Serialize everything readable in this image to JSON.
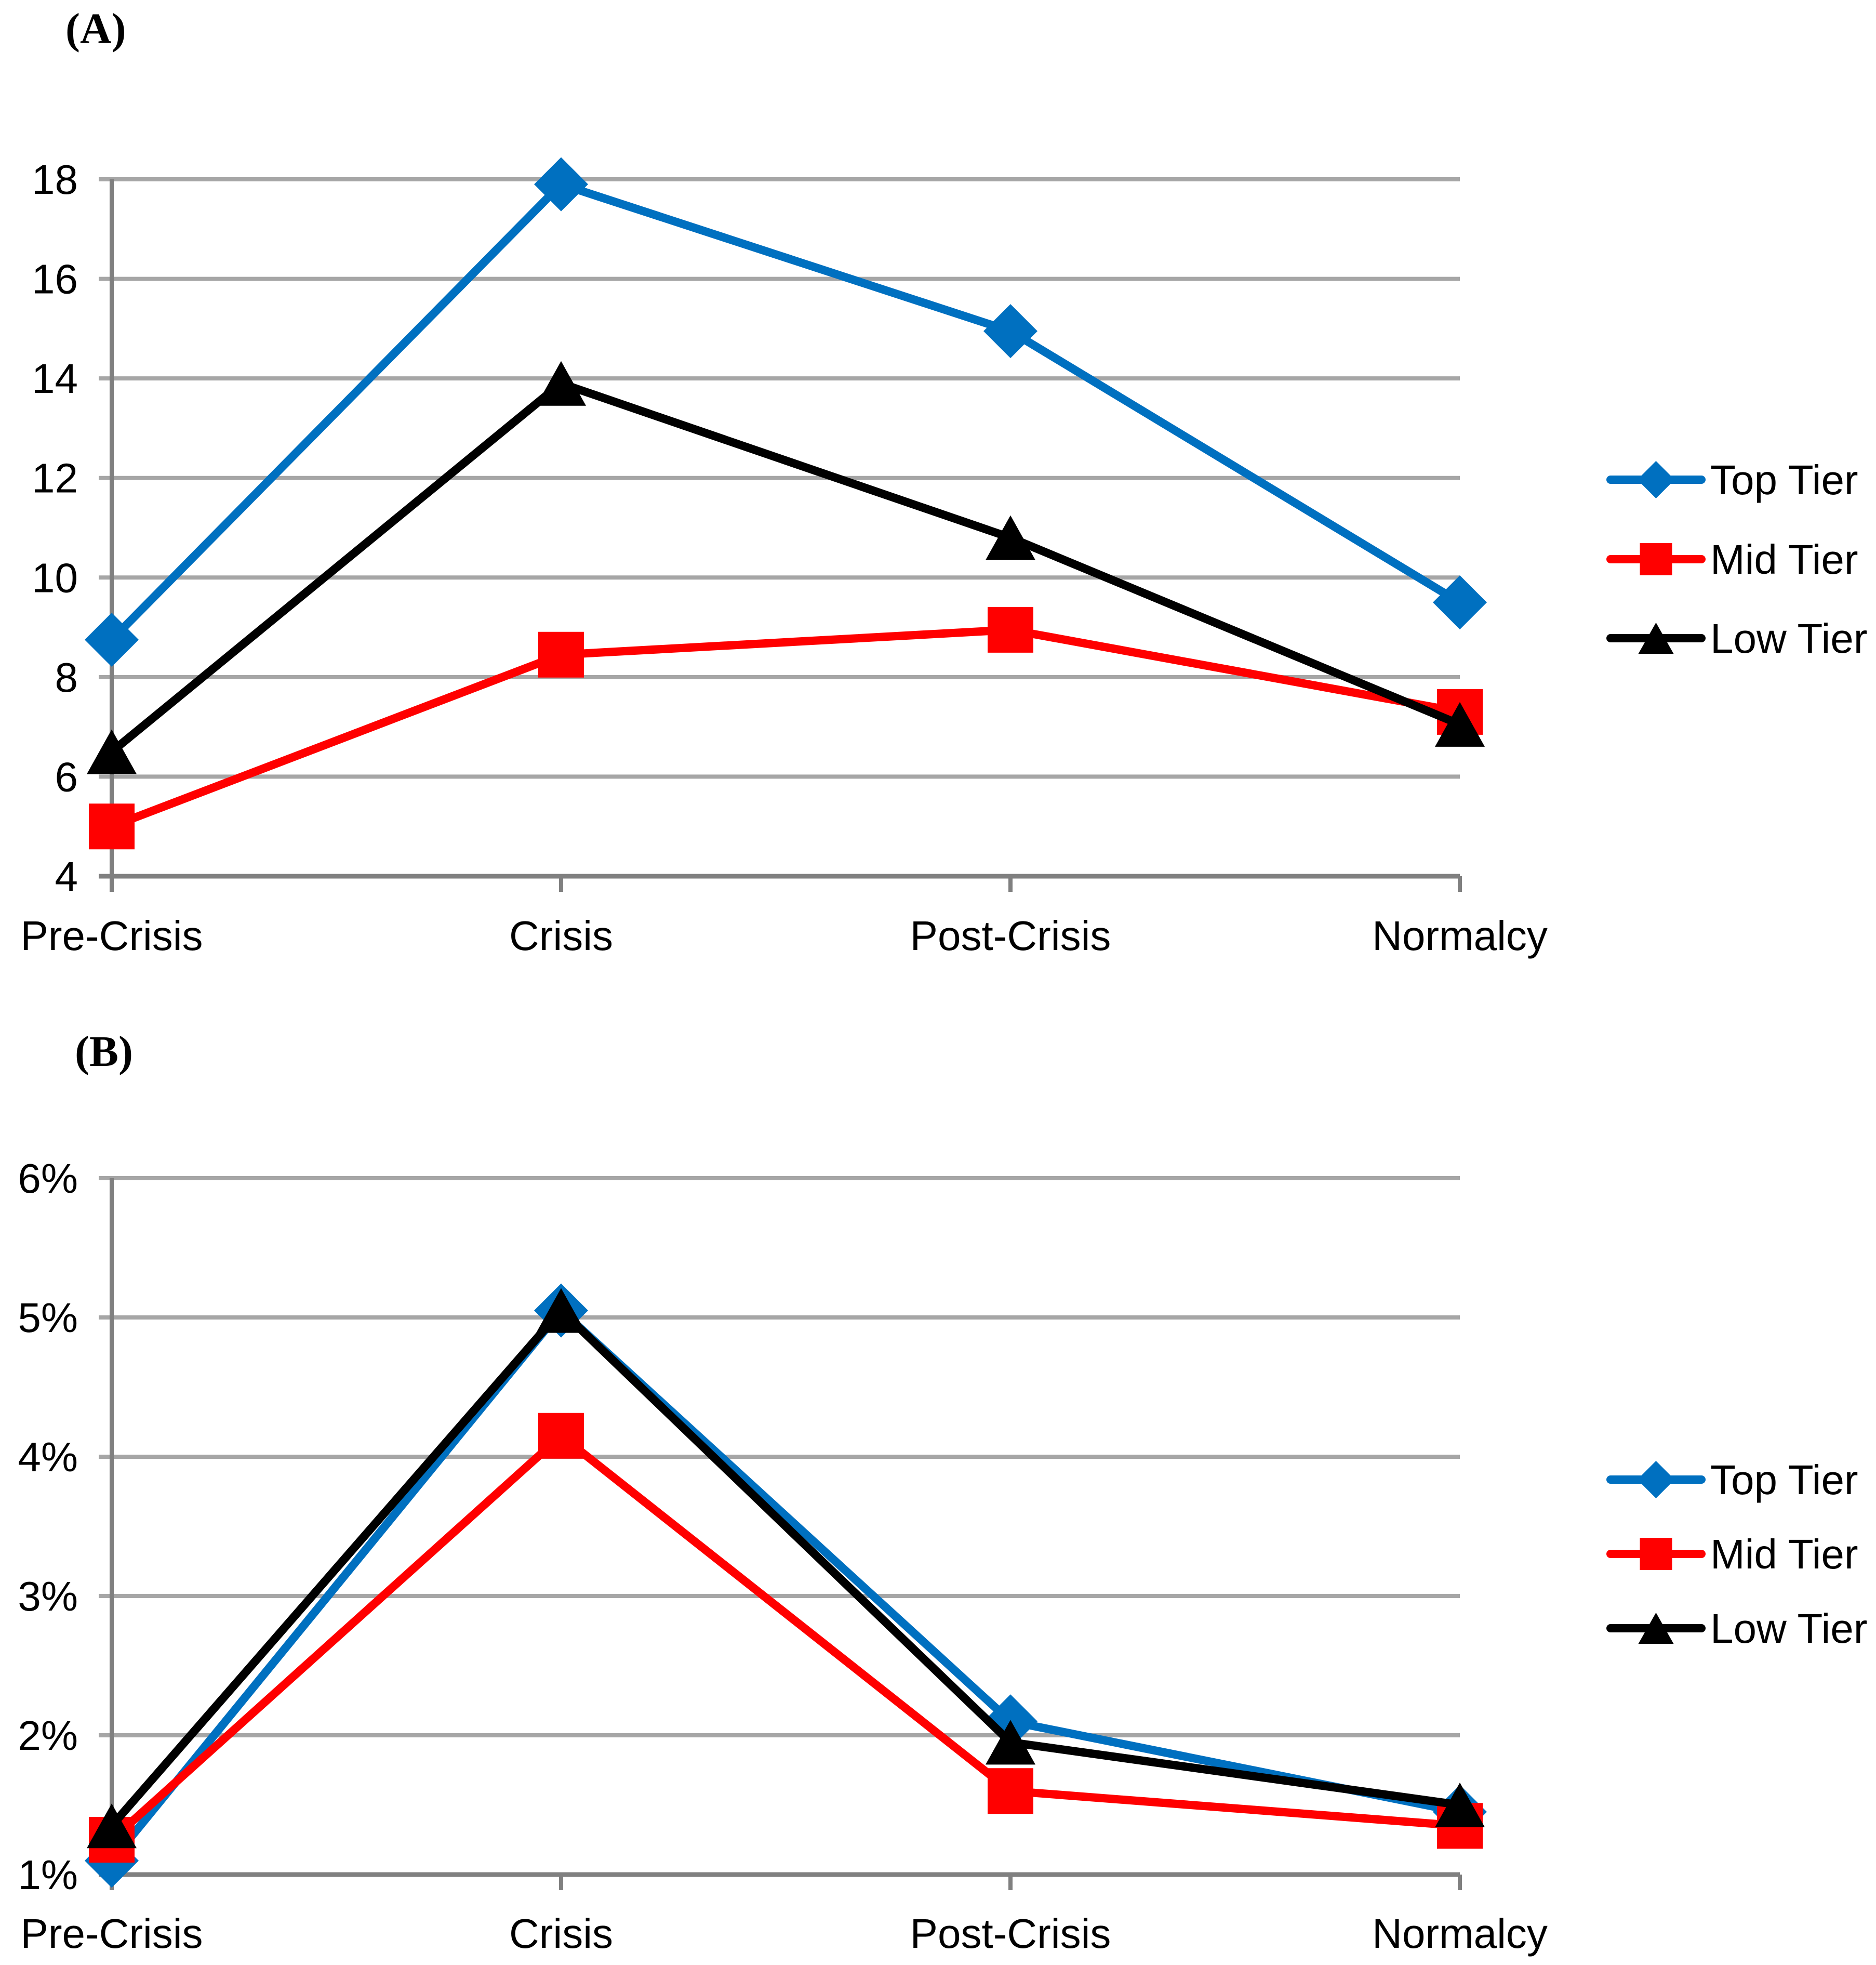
{
  "figure": {
    "background_color": "#FFFFFF",
    "gridline_color": "#A6A6A6",
    "axis_color": "#808080",
    "text_color": "#000000"
  },
  "chart_data": [
    {
      "type": "line",
      "panel_label": "(A)",
      "categories": [
        "Pre-Crisis",
        "Crisis",
        "Post-Crisis",
        "Normalcy"
      ],
      "y_tick_labels": [
        "4",
        "6",
        "8",
        "10",
        "12",
        "14",
        "16",
        "18"
      ],
      "ylim": [
        4,
        18
      ],
      "y_step": 2,
      "grid": true,
      "legend_position": "right",
      "legend_entries": [
        "Top Tier",
        "Mid Tier",
        "Low Tier"
      ],
      "series": [
        {
          "name": "Top Tier",
          "color": "#0070C0",
          "marker": "diamond-icon",
          "values": [
            8.75,
            17.9,
            14.95,
            9.5
          ]
        },
        {
          "name": "Mid Tier",
          "color": "#FF0000",
          "marker": "square-icon",
          "values": [
            5.0,
            8.45,
            8.95,
            7.3
          ]
        },
        {
          "name": "Low Tier",
          "color": "#000000",
          "marker": "triangle-icon",
          "values": [
            6.5,
            13.9,
            10.8,
            7.05
          ]
        }
      ]
    },
    {
      "type": "line",
      "panel_label": "(B)",
      "categories": [
        "Pre-Crisis",
        "Crisis",
        "Post-Crisis",
        "Normalcy"
      ],
      "y_tick_labels": [
        "1%",
        "2%",
        "3%",
        "4%",
        "5%",
        "6%"
      ],
      "ylim": [
        1,
        6
      ],
      "y_step": 1,
      "grid": true,
      "legend_position": "right",
      "legend_entries": [
        "Top Tier",
        "Mid Tier",
        "Low Tier"
      ],
      "series": [
        {
          "name": "Top Tier",
          "color": "#0070C0",
          "marker": "diamond-icon",
          "values": [
            1.1,
            5.05,
            2.1,
            1.45
          ]
        },
        {
          "name": "Mid Tier",
          "color": "#FF0000",
          "marker": "square-icon",
          "values": [
            1.25,
            4.15,
            1.6,
            1.35
          ]
        },
        {
          "name": "Low Tier",
          "color": "#000000",
          "marker": "triangle-icon",
          "values": [
            1.35,
            5.05,
            1.95,
            1.5
          ]
        }
      ]
    }
  ]
}
